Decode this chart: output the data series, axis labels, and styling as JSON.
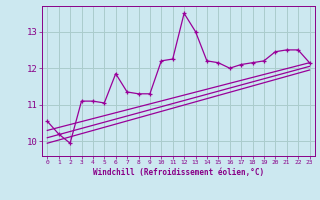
{
  "x_data": [
    0,
    1,
    2,
    3,
    4,
    5,
    6,
    7,
    8,
    9,
    10,
    11,
    12,
    13,
    14,
    15,
    16,
    17,
    18,
    19,
    20,
    21,
    22,
    23
  ],
  "y_main": [
    10.55,
    10.2,
    9.95,
    11.1,
    11.1,
    11.05,
    11.85,
    11.35,
    11.3,
    11.3,
    12.2,
    12.25,
    13.5,
    13.0,
    12.2,
    12.15,
    12.0,
    12.1,
    12.15,
    12.2,
    12.45,
    12.5,
    12.5,
    12.15
  ],
  "line_color": "#990099",
  "regression1": [
    10.3,
    12.15
  ],
  "regression2": [
    10.1,
    12.05
  ],
  "regression3": [
    9.95,
    11.95
  ],
  "x_reg_start": 0,
  "x_reg_end": 23,
  "xlabel": "Windchill (Refroidissement éolien,°C)",
  "ylabel_ticks": [
    10,
    11,
    12,
    13
  ],
  "xticks": [
    0,
    1,
    2,
    3,
    4,
    5,
    6,
    7,
    8,
    9,
    10,
    11,
    12,
    13,
    14,
    15,
    16,
    17,
    18,
    19,
    20,
    21,
    22,
    23
  ],
  "xlim": [
    -0.5,
    23.5
  ],
  "ylim": [
    9.6,
    13.7
  ],
  "bg_color": "#cce8f0",
  "grid_color": "#aacccc",
  "font_color": "#880088"
}
